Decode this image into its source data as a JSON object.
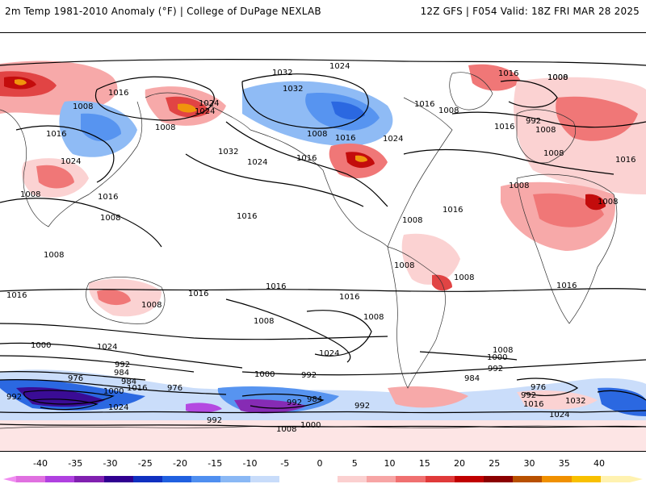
{
  "header": {
    "title_left": "2m Temp 1981-2010 Anomaly (°F) | College of DuPage NEXLAB",
    "title_right": "12Z GFS | F054 Valid: 18Z FRI MAR 28 2025"
  },
  "colorbar": {
    "labels": [
      "-40",
      "-35",
      "-30",
      "-25",
      "-20",
      "-15",
      "-10",
      "-5",
      "0",
      "5",
      "10",
      "15",
      "20",
      "25",
      "30",
      "35",
      "40"
    ],
    "colors": [
      "#e070e0",
      "#b040e0",
      "#8020b0",
      "#300090",
      "#1030c0",
      "#2060e0",
      "#4f8ff0",
      "#8ab8f5",
      "#c8dcfa",
      "#ffffff",
      "#ffffff",
      "#fbd0d0",
      "#f7a5a5",
      "#f07070",
      "#e03a3a",
      "#c00000",
      "#8b0000",
      "#b85000",
      "#f09000",
      "#f8c000",
      "#fff2b0"
    ]
  },
  "map": {
    "contour_labels": [
      {
        "text": "1024"
      },
      {
        "text": "1016"
      },
      {
        "text": "1032"
      },
      {
        "text": "1008"
      },
      {
        "text": "1032"
      },
      {
        "text": "1024"
      },
      {
        "text": "1008"
      },
      {
        "text": "1024"
      },
      {
        "text": "1016"
      },
      {
        "text": "1008"
      },
      {
        "text": "1016"
      },
      {
        "text": "1032"
      },
      {
        "text": "1024"
      },
      {
        "text": "1008"
      },
      {
        "text": "1016"
      },
      {
        "text": "1016"
      },
      {
        "text": "1024"
      },
      {
        "text": "1016"
      },
      {
        "text": "1024"
      },
      {
        "text": "1008"
      },
      {
        "text": "1008"
      },
      {
        "text": "1016"
      },
      {
        "text": "1008"
      },
      {
        "text": "1016"
      },
      {
        "text": "1000"
      },
      {
        "text": "1008"
      },
      {
        "text": "1016"
      },
      {
        "text": "992"
      },
      {
        "text": "1008"
      },
      {
        "text": "1008"
      },
      {
        "text": "1008"
      },
      {
        "text": "1008"
      },
      {
        "text": "1016"
      },
      {
        "text": "1016"
      },
      {
        "text": "1008"
      },
      {
        "text": "1008"
      },
      {
        "text": "1008"
      },
      {
        "text": "1016"
      },
      {
        "text": "1016"
      },
      {
        "text": "1016"
      },
      {
        "text": "1016"
      },
      {
        "text": "1008"
      },
      {
        "text": "1016"
      },
      {
        "text": "1024"
      },
      {
        "text": "1008"
      },
      {
        "text": "1024"
      },
      {
        "text": "1000"
      },
      {
        "text": "1008"
      },
      {
        "text": "1000"
      },
      {
        "text": "992"
      },
      {
        "text": "984"
      },
      {
        "text": "992"
      },
      {
        "text": "976"
      },
      {
        "text": "992"
      },
      {
        "text": "984"
      },
      {
        "text": "1016"
      },
      {
        "text": "1000"
      },
      {
        "text": "976"
      },
      {
        "text": "1024"
      },
      {
        "text": "992"
      },
      {
        "text": "992"
      },
      {
        "text": "1000"
      },
      {
        "text": "1008"
      },
      {
        "text": "984"
      },
      {
        "text": "992"
      },
      {
        "text": "1008"
      },
      {
        "text": "1000"
      },
      {
        "text": "992"
      },
      {
        "text": "976"
      },
      {
        "text": "1016"
      },
      {
        "text": "1032"
      },
      {
        "text": "1024"
      },
      {
        "text": "992"
      },
      {
        "text": "984"
      }
    ]
  }
}
